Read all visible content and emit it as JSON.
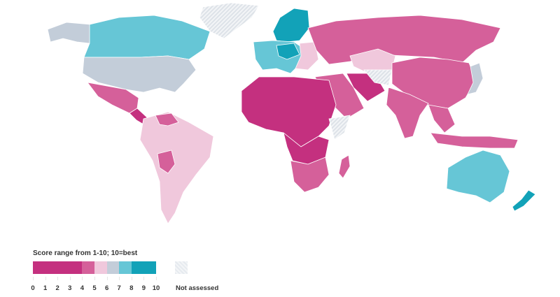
{
  "legend": {
    "title": "Score range from 1-10; 10=best",
    "bins": [
      {
        "from": 0,
        "to": 4,
        "color": "#c4307f"
      },
      {
        "from": 4,
        "to": 5,
        "color": "#d5609a"
      },
      {
        "from": 5,
        "to": 6,
        "color": "#f0c8dc"
      },
      {
        "from": 6,
        "to": 7,
        "color": "#c3cdd9"
      },
      {
        "from": 7,
        "to": 8,
        "color": "#66c6d6"
      },
      {
        "from": 8,
        "to": 10,
        "color": "#12a2b8"
      }
    ],
    "ticks": [
      "0",
      "1",
      "2",
      "3",
      "4",
      "5",
      "6",
      "7",
      "8",
      "9",
      "10"
    ],
    "not_assessed_label": "Not assessed",
    "not_assessed_color": "#eef1f4"
  }
}
